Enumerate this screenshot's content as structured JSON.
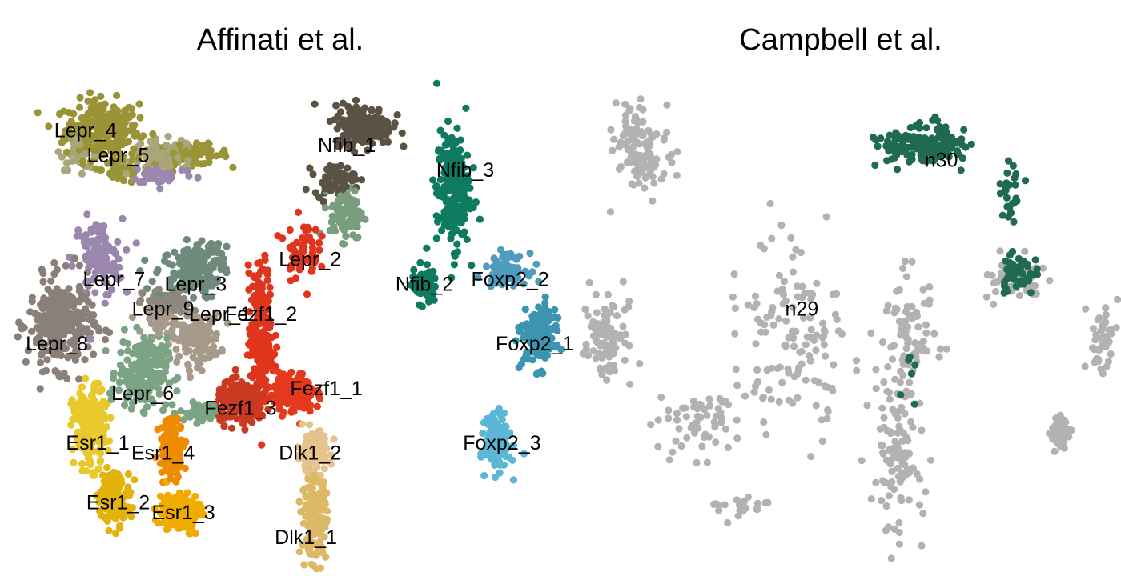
{
  "chart_data": [
    {
      "type": "scatter",
      "title": "Affinati et al.",
      "xlabel": "",
      "ylabel": "",
      "axes_visible": false,
      "clusters": [
        {
          "name": "Lepr_4",
          "color": "#9a9436",
          "lx": 0.17,
          "ly": 0.88,
          "blobs": [
            [
              0.21,
              0.88,
              0.09,
              0.06,
              260
            ],
            [
              0.43,
              0.83,
              0.09,
              0.02,
              80
            ],
            [
              0.26,
              0.8,
              0.05,
              0.03,
              50
            ]
          ]
        },
        {
          "name": "Lepr_5",
          "color": "#a9a67a",
          "lx": 0.25,
          "ly": 0.83,
          "blobs": [
            [
              0.36,
              0.83,
              0.08,
              0.03,
              90
            ],
            [
              0.16,
              0.84,
              0.05,
              0.04,
              40
            ]
          ]
        },
        {
          "name": "Lepr_7",
          "color": "#9b86ad",
          "lx": 0.24,
          "ly": 0.58,
          "blobs": [
            [
              0.2,
              0.62,
              0.06,
              0.08,
              110
            ],
            [
              0.36,
              0.79,
              0.08,
              0.02,
              40
            ]
          ]
        },
        {
          "name": "Lepr_3",
          "color": "#6e8a7d",
          "lx": 0.44,
          "ly": 0.57,
          "blobs": [
            [
              0.42,
              0.59,
              0.08,
              0.05,
              120
            ],
            [
              0.46,
              0.63,
              0.05,
              0.03,
              40
            ]
          ]
        },
        {
          "name": "Lepr_9",
          "color": "#8e877d",
          "lx": 0.36,
          "ly": 0.52,
          "blobs": [
            [
              0.37,
              0.53,
              0.06,
              0.03,
              80
            ]
          ]
        },
        {
          "name": "Lepr_1",
          "color": "#a89a8a",
          "lx": 0.5,
          "ly": 0.51,
          "blobs": [
            [
              0.44,
              0.46,
              0.06,
              0.05,
              130
            ],
            [
              0.36,
              0.5,
              0.04,
              0.03,
              50
            ]
          ]
        },
        {
          "name": "Lepr_8",
          "color": "#8a8079",
          "lx": 0.1,
          "ly": 0.45,
          "blobs": [
            [
              0.11,
              0.49,
              0.08,
              0.09,
              280
            ]
          ]
        },
        {
          "name": "Lepr_6",
          "color": "#7ba485",
          "lx": 0.31,
          "ly": 0.35,
          "blobs": [
            [
              0.31,
              0.39,
              0.06,
              0.07,
              200
            ],
            [
              0.46,
              0.31,
              0.06,
              0.02,
              50
            ]
          ]
        },
        {
          "name": "Lepr_2",
          "color": "#789e7d",
          "lx": 0.72,
          "ly": 0.62,
          "blobs": [
            [
              0.81,
              0.71,
              0.04,
              0.05,
              100
            ]
          ]
        },
        {
          "name": "Nfib_1",
          "color": "#5a5244",
          "lx": 0.81,
          "ly": 0.85,
          "blobs": [
            [
              0.85,
              0.89,
              0.07,
              0.04,
              220
            ],
            [
              0.78,
              0.78,
              0.05,
              0.03,
              60
            ]
          ]
        },
        {
          "name": "Nfib_3",
          "color": "#0e7a5f",
          "lx": 1.1,
          "ly": 0.8,
          "blobs": [
            [
              1.07,
              0.76,
              0.04,
              0.12,
              230
            ]
          ]
        },
        {
          "name": "Nfib_2",
          "color": "#0e7a5f",
          "lx": 1.0,
          "ly": 0.57,
          "blobs": [
            [
              1.0,
              0.57,
              0.03,
              0.04,
              70
            ]
          ]
        },
        {
          "name": "Fezf1_2",
          "color": "#e0341c",
          "lx": 0.6,
          "ly": 0.51,
          "blobs": [
            [
              0.6,
              0.46,
              0.03,
              0.14,
              220
            ],
            [
              0.7,
              0.64,
              0.04,
              0.06,
              60
            ]
          ]
        },
        {
          "name": "Fezf1_1",
          "color": "#e6381d",
          "lx": 0.76,
          "ly": 0.36,
          "blobs": [
            [
              0.68,
              0.35,
              0.05,
              0.04,
              180
            ]
          ]
        },
        {
          "name": "Fezf1_3",
          "color": "#c83a22",
          "lx": 0.55,
          "ly": 0.32,
          "blobs": [
            [
              0.55,
              0.33,
              0.06,
              0.04,
              220
            ]
          ]
        },
        {
          "name": "Foxp2_2",
          "color": "#4f9bbd",
          "lx": 1.21,
          "ly": 0.58,
          "blobs": [
            [
              1.2,
              0.6,
              0.05,
              0.03,
              90
            ]
          ]
        },
        {
          "name": "Foxp2_1",
          "color": "#3b94b0",
          "lx": 1.27,
          "ly": 0.45,
          "blobs": [
            [
              1.28,
              0.46,
              0.04,
              0.06,
              160
            ]
          ]
        },
        {
          "name": "Foxp2_3",
          "color": "#5ab8d6",
          "lx": 1.19,
          "ly": 0.25,
          "blobs": [
            [
              1.18,
              0.25,
              0.03,
              0.05,
              190
            ]
          ]
        },
        {
          "name": "Esr1_1",
          "color": "#e8c82a",
          "lx": 0.2,
          "ly": 0.25,
          "blobs": [
            [
              0.18,
              0.28,
              0.04,
              0.08,
              200
            ]
          ]
        },
        {
          "name": "Esr1_4",
          "color": "#f08a00",
          "lx": 0.36,
          "ly": 0.23,
          "blobs": [
            [
              0.38,
              0.24,
              0.03,
              0.06,
              130
            ]
          ]
        },
        {
          "name": "Esr1_2",
          "color": "#e3b30c",
          "lx": 0.25,
          "ly": 0.13,
          "blobs": [
            [
              0.24,
              0.14,
              0.04,
              0.05,
              130
            ]
          ]
        },
        {
          "name": "Esr1_3",
          "color": "#f0aa00",
          "lx": 0.41,
          "ly": 0.11,
          "blobs": [
            [
              0.4,
              0.11,
              0.05,
              0.04,
              160
            ]
          ]
        },
        {
          "name": "Dlk1_2",
          "color": "#e6c28e",
          "lx": 0.72,
          "ly": 0.23,
          "blobs": [
            [
              0.73,
              0.23,
              0.04,
              0.04,
              110
            ]
          ]
        },
        {
          "name": "Dlk1_1",
          "color": "#ddb866",
          "lx": 0.71,
          "ly": 0.06,
          "blobs": [
            [
              0.73,
              0.1,
              0.03,
              0.08,
              160
            ]
          ]
        }
      ]
    },
    {
      "type": "scatter",
      "title": "Campbell et al.",
      "xlabel": "",
      "ylabel": "",
      "axes_visible": false,
      "clusters": [
        {
          "name": "n29",
          "color": "#b2b2b2",
          "lx": 0.42,
          "ly": 0.52,
          "blobs": [
            [
              0.12,
              0.84,
              0.05,
              0.09,
              120
            ],
            [
              0.06,
              0.47,
              0.04,
              0.09,
              90
            ],
            [
              0.4,
              0.46,
              0.1,
              0.18,
              130
            ],
            [
              0.62,
              0.46,
              0.05,
              0.12,
              80
            ],
            [
              0.59,
              0.22,
              0.05,
              0.14,
              100
            ],
            [
              0.82,
              0.58,
              0.05,
              0.04,
              60
            ],
            [
              0.98,
              0.46,
              0.03,
              0.07,
              50
            ],
            [
              0.9,
              0.27,
              0.02,
              0.03,
              40
            ],
            [
              0.22,
              0.3,
              0.08,
              0.08,
              60
            ],
            [
              0.3,
              0.12,
              0.06,
              0.03,
              20
            ]
          ]
        },
        {
          "name": "n30",
          "color": "#1f6b4f",
          "lx": 0.68,
          "ly": 0.82,
          "blobs": [
            [
              0.65,
              0.85,
              0.08,
              0.04,
              150
            ],
            [
              0.81,
              0.76,
              0.02,
              0.06,
              25
            ],
            [
              0.82,
              0.59,
              0.04,
              0.04,
              50
            ],
            [
              0.62,
              0.38,
              0.03,
              0.05,
              6
            ]
          ]
        }
      ]
    }
  ]
}
